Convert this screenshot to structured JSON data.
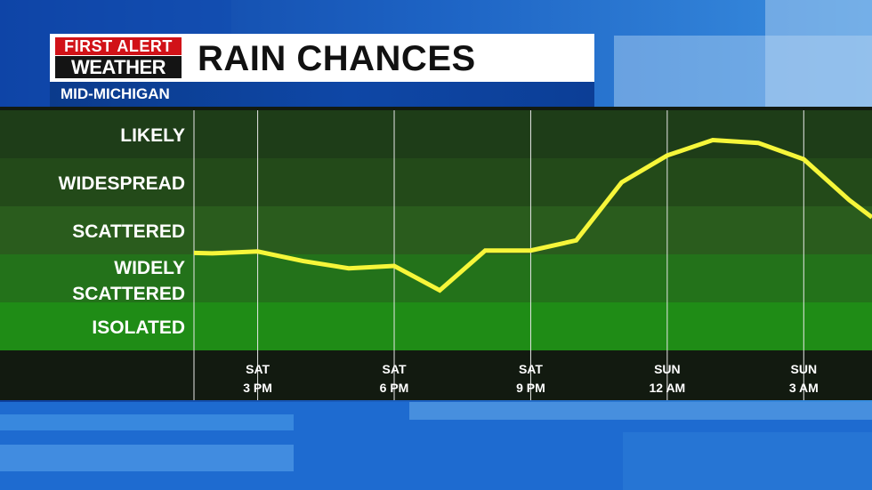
{
  "header": {
    "logo_line1": "FIRST ALERT",
    "logo_line2": "WEATHER",
    "title": "RAIN CHANCES",
    "subtitle": "MID-MICHIGAN"
  },
  "colors": {
    "line": "#f6f63a",
    "band_dark": "#1e3d18",
    "band_light": "#1f8c16",
    "header_red": "#d11218",
    "sub_blue": "#0e47a6"
  },
  "chart_data": {
    "type": "line",
    "title": "RAIN CHANCES",
    "categories_y": [
      "ISOLATED",
      "WIDELY SCATTERED",
      "SCATTERED",
      "WIDESPREAD",
      "LIKELY"
    ],
    "y_labels": [
      [
        "LIKELY"
      ],
      [
        "WIDESPREAD"
      ],
      [
        "SCATTERED"
      ],
      [
        "WIDELY",
        "SCATTERED"
      ],
      [
        "ISOLATED"
      ]
    ],
    "ylim": [
      0,
      5
    ],
    "x_ticks": [
      {
        "day": "SAT",
        "time": "3 PM",
        "hour": 15
      },
      {
        "day": "SAT",
        "time": "6 PM",
        "hour": 18
      },
      {
        "day": "SAT",
        "time": "9 PM",
        "hour": 21
      },
      {
        "day": "SUN",
        "time": "12 AM",
        "hour": 24
      },
      {
        "day": "SUN",
        "time": "3 AM",
        "hour": 27
      }
    ],
    "xlim": [
      13.6,
      28.5
    ],
    "series": [
      {
        "x": [
          13.6,
          14.0,
          15.0,
          16.0,
          17.0,
          18.0,
          19.0,
          20.0,
          21.0,
          22.0,
          23.0,
          24.0,
          25.0,
          26.0,
          27.0,
          28.0,
          28.5
        ],
        "y": [
          2.03,
          2.02,
          2.06,
          1.86,
          1.71,
          1.76,
          1.25,
          2.08,
          2.08,
          2.29,
          3.5,
          4.06,
          4.38,
          4.32,
          3.98,
          3.13,
          2.77
        ]
      }
    ],
    "grid": "vertical lines at x ticks"
  }
}
